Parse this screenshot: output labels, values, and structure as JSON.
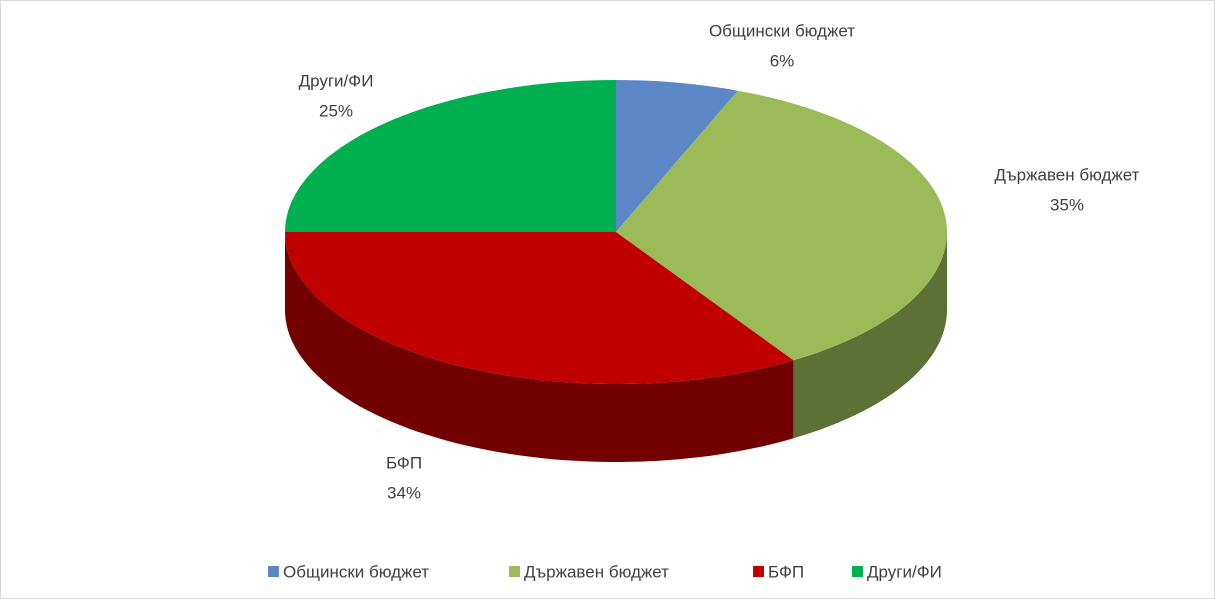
{
  "chart_data": {
    "type": "pie3d",
    "categories": [
      "Общински бюджет",
      "Държавен бюджет",
      "БФП",
      "Други/ФИ"
    ],
    "values": [
      6,
      35,
      34,
      25
    ],
    "value_labels": [
      "6%",
      "35%",
      "34%",
      "25%"
    ],
    "colors": [
      "#5b87c6",
      "#9bbb59",
      "#c00000",
      "#00b050"
    ],
    "legend": "bottom"
  }
}
